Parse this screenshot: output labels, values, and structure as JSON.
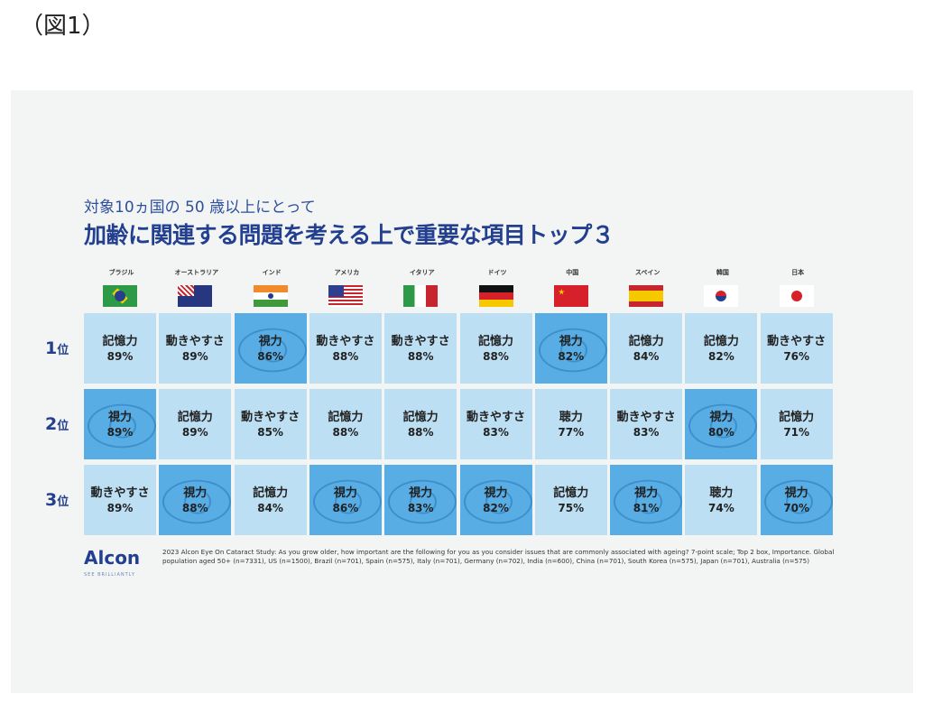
{
  "figure_label": "（図1）",
  "subtitle": "対象10ヵ国の 50 歳以上にとって",
  "title": "加齢に関連する問題を考える上で重要な項目トップ３",
  "countries": [
    "ブラジル",
    "オーストラリア",
    "インド",
    "アメリカ",
    "イタリア",
    "ドイツ",
    "中国",
    "スペイン",
    "韓国",
    "日本"
  ],
  "ranks": [
    {
      "n": "1",
      "suffix": "位"
    },
    {
      "n": "2",
      "suffix": "位"
    },
    {
      "n": "3",
      "suffix": "位"
    }
  ],
  "rows": [
    [
      {
        "label": "記憶力",
        "value": "89%"
      },
      {
        "label": "動きやすさ",
        "value": "89%"
      },
      {
        "label": "視力",
        "value": "86%",
        "highlight": true
      },
      {
        "label": "動きやすさ",
        "value": "88%"
      },
      {
        "label": "動きやすさ",
        "value": "88%"
      },
      {
        "label": "記憶力",
        "value": "88%"
      },
      {
        "label": "視力",
        "value": "82%",
        "highlight": true
      },
      {
        "label": "記憶力",
        "value": "84%"
      },
      {
        "label": "記憶力",
        "value": "82%"
      },
      {
        "label": "動きやすさ",
        "value": "76%"
      }
    ],
    [
      {
        "label": "視力",
        "value": "89%",
        "highlight": true
      },
      {
        "label": "記憶力",
        "value": "89%"
      },
      {
        "label": "動きやすさ",
        "value": "85%"
      },
      {
        "label": "記憶力",
        "value": "88%"
      },
      {
        "label": "記憶力",
        "value": "88%"
      },
      {
        "label": "動きやすさ",
        "value": "83%"
      },
      {
        "label": "聴力",
        "value": "77%"
      },
      {
        "label": "動きやすさ",
        "value": "83%"
      },
      {
        "label": "視力",
        "value": "80%",
        "highlight": true
      },
      {
        "label": "記憶力",
        "value": "71%"
      }
    ],
    [
      {
        "label": "動きやすさ",
        "value": "89%"
      },
      {
        "label": "視力",
        "value": "88%",
        "highlight": true
      },
      {
        "label": "記憶力",
        "value": "84%"
      },
      {
        "label": "視力",
        "value": "86%",
        "highlight": true
      },
      {
        "label": "視力",
        "value": "83%",
        "highlight": true
      },
      {
        "label": "視力",
        "value": "82%",
        "highlight": true
      },
      {
        "label": "記憶力",
        "value": "75%"
      },
      {
        "label": "視力",
        "value": "81%",
        "highlight": true
      },
      {
        "label": "聴力",
        "value": "74%"
      },
      {
        "label": "視力",
        "value": "70%",
        "highlight": true
      }
    ]
  ],
  "logo": "Alcon",
  "tagline": "SEE BRILLIANTLY",
  "footnote": "2023 Alcon Eye On Cataract Study: As you grow older, how important are the following for you as you consider issues that are commonly associated with ageing? 7-point scale; Top 2 box, Importance. Global population aged 50+ (n=7331), US (n=1500), Brazil (n=701), Spain (n=575), Italy (n=701), Germany (n=702), India (n=600), China (n=701), South Korea (n=575), Japan (n=701), Australia (n=575)"
}
